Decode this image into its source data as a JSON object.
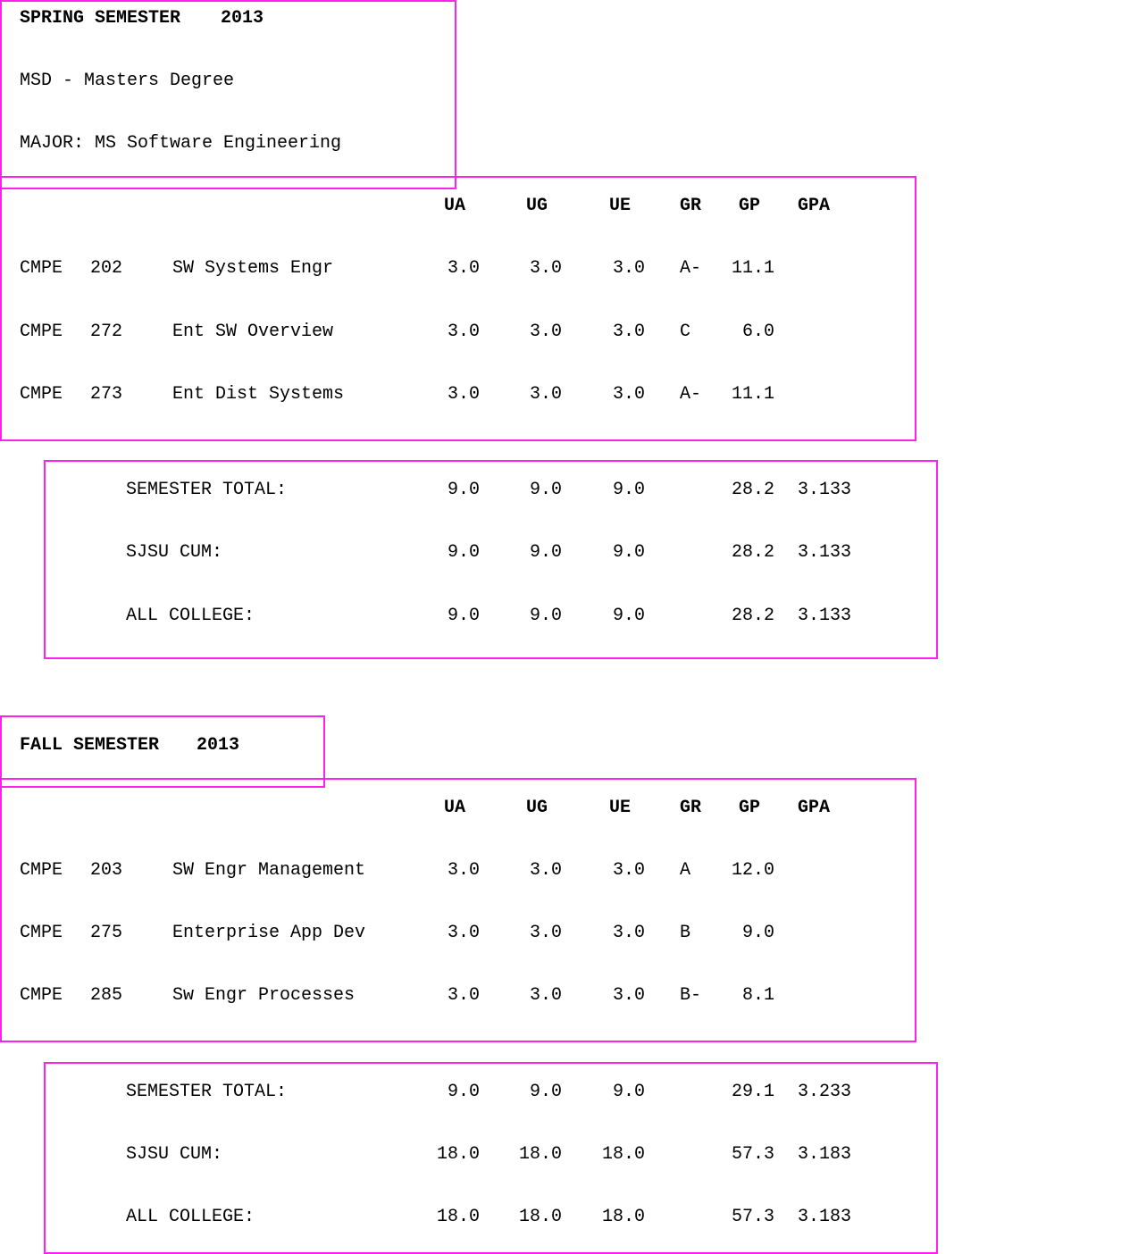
{
  "accent_color": "#ff22ee",
  "spring": {
    "title": "SPRING SEMESTER",
    "year": "2013",
    "degree": "MSD - Masters Degree",
    "major": "MAJOR: MS Software Engineering",
    "headers": {
      "ua": "UA",
      "ug": "UG",
      "ue": "UE",
      "gr": "GR",
      "gp": "GP",
      "gpa": "GPA"
    },
    "courses": [
      {
        "dept": "CMPE",
        "num": "202",
        "title": "SW Systems Engr",
        "ua": "3.0",
        "ug": "3.0",
        "ue": "3.0",
        "gr": "A-",
        "gp": "11.1"
      },
      {
        "dept": "CMPE",
        "num": "272",
        "title": "Ent SW Overview",
        "ua": "3.0",
        "ug": "3.0",
        "ue": "3.0",
        "gr": "C",
        "gp": "6.0"
      },
      {
        "dept": "CMPE",
        "num": "273",
        "title": "Ent Dist Systems",
        "ua": "3.0",
        "ug": "3.0",
        "ue": "3.0",
        "gr": "A-",
        "gp": "11.1"
      }
    ],
    "totals": [
      {
        "label": "SEMESTER TOTAL:",
        "ua": "9.0",
        "ug": "9.0",
        "ue": "9.0",
        "gp": "28.2",
        "gpa": "3.133"
      },
      {
        "label": "SJSU CUM:",
        "ua": "9.0",
        "ug": "9.0",
        "ue": "9.0",
        "gp": "28.2",
        "gpa": "3.133"
      },
      {
        "label": "ALL COLLEGE:",
        "ua": "9.0",
        "ug": "9.0",
        "ue": "9.0",
        "gp": "28.2",
        "gpa": "3.133"
      }
    ]
  },
  "fall": {
    "title": "FALL SEMESTER",
    "year": "2013",
    "headers": {
      "ua": "UA",
      "ug": "UG",
      "ue": "UE",
      "gr": "GR",
      "gp": "GP",
      "gpa": "GPA"
    },
    "courses": [
      {
        "dept": "CMPE",
        "num": "203",
        "title": "SW Engr Management",
        "ua": "3.0",
        "ug": "3.0",
        "ue": "3.0",
        "gr": "A",
        "gp": "12.0"
      },
      {
        "dept": "CMPE",
        "num": "275",
        "title": "Enterprise App Dev",
        "ua": "3.0",
        "ug": "3.0",
        "ue": "3.0",
        "gr": "B",
        "gp": "9.0"
      },
      {
        "dept": "CMPE",
        "num": "285",
        "title": "Sw Engr Processes",
        "ua": "3.0",
        "ug": "3.0",
        "ue": "3.0",
        "gr": "B-",
        "gp": "8.1"
      }
    ],
    "totals": [
      {
        "label": "SEMESTER TOTAL:",
        "ua": "9.0",
        "ug": "9.0",
        "ue": "9.0",
        "gp": "29.1",
        "gpa": "3.233"
      },
      {
        "label": "SJSU CUM:",
        "ua": "18.0",
        "ug": "18.0",
        "ue": "18.0",
        "gp": "57.3",
        "gpa": "3.183"
      },
      {
        "label": "ALL COLLEGE:",
        "ua": "18.0",
        "ug": "18.0",
        "ue": "18.0",
        "gp": "57.3",
        "gpa": "3.183"
      }
    ]
  }
}
